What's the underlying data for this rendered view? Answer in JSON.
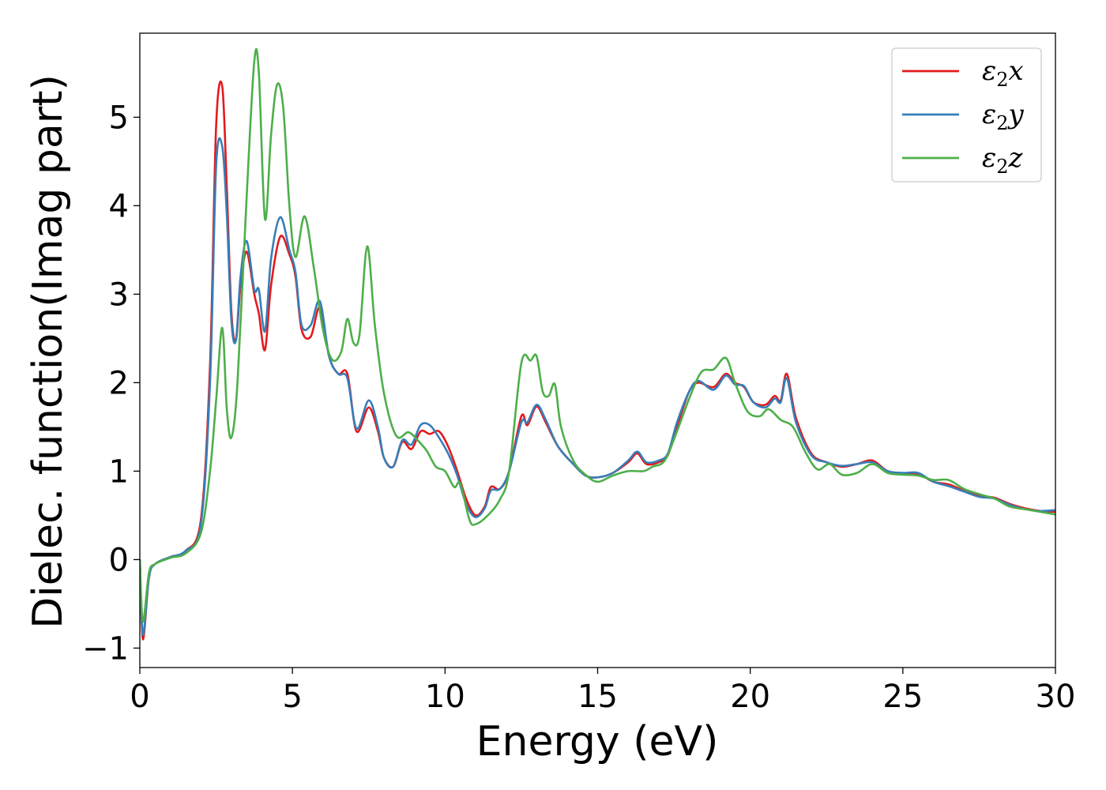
{
  "chart_data": {
    "type": "line",
    "title": "",
    "xlabel": "Energy (eV)",
    "ylabel": "Dielec. function(Imag part)",
    "xlim": [
      0,
      30
    ],
    "ylim": [
      -1.22,
      5.95
    ],
    "xticks": [
      0,
      5,
      10,
      15,
      20,
      25,
      30
    ],
    "yticks": [
      -1,
      0,
      1,
      2,
      3,
      4,
      5
    ],
    "xtick_labels": [
      "0",
      "5",
      "10",
      "15",
      "20",
      "25",
      "30"
    ],
    "ytick_labels": [
      "−1",
      "0",
      "1",
      "2",
      "3",
      "4",
      "5"
    ],
    "grid": false,
    "legend_position": "top-right",
    "series": [
      {
        "name": "ε₂x",
        "legend_main": "ε",
        "legend_sub": "2",
        "legend_suffix": "x",
        "color": "#e41a1c",
        "points": [
          [
            0,
            0
          ],
          [
            0.1,
            -0.9
          ],
          [
            0.3,
            -0.2
          ],
          [
            0.5,
            -0.05
          ],
          [
            1.0,
            0.03
          ],
          [
            1.5,
            0.1
          ],
          [
            2.0,
            0.45
          ],
          [
            2.3,
            2.2
          ],
          [
            2.5,
            4.9
          ],
          [
            2.7,
            5.35
          ],
          [
            2.85,
            4.2
          ],
          [
            3.0,
            2.8
          ],
          [
            3.15,
            2.48
          ],
          [
            3.3,
            3.1
          ],
          [
            3.5,
            3.48
          ],
          [
            3.75,
            3.0
          ],
          [
            3.9,
            2.78
          ],
          [
            4.1,
            2.37
          ],
          [
            4.3,
            3.1
          ],
          [
            4.6,
            3.65
          ],
          [
            4.9,
            3.45
          ],
          [
            5.1,
            3.2
          ],
          [
            5.3,
            2.6
          ],
          [
            5.6,
            2.52
          ],
          [
            5.9,
            2.85
          ],
          [
            6.2,
            2.3
          ],
          [
            6.5,
            2.1
          ],
          [
            6.8,
            2.1
          ],
          [
            7.1,
            1.45
          ],
          [
            7.5,
            1.72
          ],
          [
            7.8,
            1.45
          ],
          [
            8.0,
            1.15
          ],
          [
            8.3,
            1.05
          ],
          [
            8.6,
            1.33
          ],
          [
            8.9,
            1.25
          ],
          [
            9.2,
            1.45
          ],
          [
            9.5,
            1.42
          ],
          [
            9.8,
            1.45
          ],
          [
            10.1,
            1.28
          ],
          [
            10.4,
            1.0
          ],
          [
            10.7,
            0.68
          ],
          [
            11.0,
            0.5
          ],
          [
            11.3,
            0.6
          ],
          [
            11.5,
            0.82
          ],
          [
            11.8,
            0.8
          ],
          [
            12.1,
            1.0
          ],
          [
            12.5,
            1.62
          ],
          [
            12.7,
            1.52
          ],
          [
            13.0,
            1.73
          ],
          [
            13.3,
            1.55
          ],
          [
            13.7,
            1.28
          ],
          [
            14.2,
            1.08
          ],
          [
            14.6,
            0.95
          ],
          [
            15.0,
            0.93
          ],
          [
            15.5,
            0.98
          ],
          [
            16.0,
            1.1
          ],
          [
            16.3,
            1.2
          ],
          [
            16.6,
            1.08
          ],
          [
            17.0,
            1.1
          ],
          [
            17.3,
            1.18
          ],
          [
            17.6,
            1.5
          ],
          [
            18.0,
            1.9
          ],
          [
            18.3,
            2.0
          ],
          [
            18.8,
            1.95
          ],
          [
            19.2,
            2.1
          ],
          [
            19.5,
            2.0
          ],
          [
            19.8,
            1.95
          ],
          [
            20.1,
            1.78
          ],
          [
            20.5,
            1.75
          ],
          [
            20.8,
            1.85
          ],
          [
            21.0,
            1.8
          ],
          [
            21.2,
            2.1
          ],
          [
            21.5,
            1.6
          ],
          [
            22.0,
            1.2
          ],
          [
            22.5,
            1.1
          ],
          [
            23.0,
            1.05
          ],
          [
            23.5,
            1.08
          ],
          [
            24.0,
            1.12
          ],
          [
            24.5,
            1.0
          ],
          [
            25.0,
            0.97
          ],
          [
            25.5,
            0.97
          ],
          [
            26.0,
            0.88
          ],
          [
            26.5,
            0.85
          ],
          [
            27.0,
            0.78
          ],
          [
            27.5,
            0.72
          ],
          [
            28.0,
            0.7
          ],
          [
            28.5,
            0.63
          ],
          [
            29.0,
            0.58
          ],
          [
            29.5,
            0.55
          ],
          [
            30.0,
            0.54
          ]
        ]
      },
      {
        "name": "ε₂y",
        "legend_main": "ε",
        "legend_sub": "2",
        "legend_suffix": "y",
        "color": "#377eb8",
        "points": [
          [
            0,
            0
          ],
          [
            0.1,
            -0.85
          ],
          [
            0.3,
            -0.2
          ],
          [
            0.5,
            -0.05
          ],
          [
            1.0,
            0.03
          ],
          [
            1.5,
            0.1
          ],
          [
            2.0,
            0.4
          ],
          [
            2.3,
            2.0
          ],
          [
            2.5,
            4.45
          ],
          [
            2.7,
            4.67
          ],
          [
            2.85,
            3.9
          ],
          [
            3.0,
            2.7
          ],
          [
            3.15,
            2.48
          ],
          [
            3.3,
            3.2
          ],
          [
            3.5,
            3.6
          ],
          [
            3.75,
            3.05
          ],
          [
            3.9,
            3.05
          ],
          [
            4.1,
            2.58
          ],
          [
            4.3,
            3.4
          ],
          [
            4.6,
            3.87
          ],
          [
            4.9,
            3.5
          ],
          [
            5.1,
            3.25
          ],
          [
            5.3,
            2.65
          ],
          [
            5.6,
            2.65
          ],
          [
            5.9,
            2.92
          ],
          [
            6.2,
            2.3
          ],
          [
            6.5,
            2.1
          ],
          [
            6.8,
            2.05
          ],
          [
            7.1,
            1.48
          ],
          [
            7.5,
            1.8
          ],
          [
            7.8,
            1.5
          ],
          [
            8.0,
            1.15
          ],
          [
            8.3,
            1.05
          ],
          [
            8.6,
            1.35
          ],
          [
            8.9,
            1.3
          ],
          [
            9.2,
            1.52
          ],
          [
            9.5,
            1.52
          ],
          [
            9.8,
            1.38
          ],
          [
            10.1,
            1.2
          ],
          [
            10.4,
            0.95
          ],
          [
            10.7,
            0.62
          ],
          [
            11.0,
            0.48
          ],
          [
            11.3,
            0.58
          ],
          [
            11.5,
            0.78
          ],
          [
            11.8,
            0.8
          ],
          [
            12.1,
            1.0
          ],
          [
            12.5,
            1.55
          ],
          [
            12.7,
            1.55
          ],
          [
            13.0,
            1.75
          ],
          [
            13.3,
            1.58
          ],
          [
            13.7,
            1.28
          ],
          [
            14.2,
            1.08
          ],
          [
            14.6,
            0.95
          ],
          [
            15.0,
            0.93
          ],
          [
            15.5,
            0.98
          ],
          [
            16.0,
            1.12
          ],
          [
            16.3,
            1.22
          ],
          [
            16.6,
            1.1
          ],
          [
            17.0,
            1.12
          ],
          [
            17.3,
            1.2
          ],
          [
            17.6,
            1.55
          ],
          [
            18.0,
            1.9
          ],
          [
            18.3,
            2.02
          ],
          [
            18.8,
            1.92
          ],
          [
            19.2,
            2.08
          ],
          [
            19.5,
            1.98
          ],
          [
            19.8,
            1.96
          ],
          [
            20.1,
            1.78
          ],
          [
            20.5,
            1.72
          ],
          [
            20.8,
            1.82
          ],
          [
            21.0,
            1.78
          ],
          [
            21.2,
            2.05
          ],
          [
            21.5,
            1.55
          ],
          [
            22.0,
            1.18
          ],
          [
            22.5,
            1.1
          ],
          [
            23.0,
            1.06
          ],
          [
            23.5,
            1.08
          ],
          [
            24.0,
            1.1
          ],
          [
            24.5,
            1.0
          ],
          [
            25.0,
            0.98
          ],
          [
            25.5,
            0.98
          ],
          [
            26.0,
            0.88
          ],
          [
            26.5,
            0.83
          ],
          [
            27.0,
            0.77
          ],
          [
            27.5,
            0.71
          ],
          [
            28.0,
            0.69
          ],
          [
            28.5,
            0.62
          ],
          [
            29.0,
            0.57
          ],
          [
            29.5,
            0.55
          ],
          [
            30.0,
            0.56
          ]
        ]
      },
      {
        "name": "ε₂z",
        "legend_main": "ε",
        "legend_sub": "2",
        "legend_suffix": "z",
        "color": "#4daf4a",
        "points": [
          [
            0,
            0
          ],
          [
            0.1,
            -0.7
          ],
          [
            0.3,
            -0.15
          ],
          [
            0.5,
            -0.05
          ],
          [
            1.0,
            0.02
          ],
          [
            1.5,
            0.07
          ],
          [
            2.0,
            0.3
          ],
          [
            2.3,
            1.0
          ],
          [
            2.5,
            1.8
          ],
          [
            2.7,
            2.62
          ],
          [
            2.85,
            1.7
          ],
          [
            3.0,
            1.38
          ],
          [
            3.2,
            2.0
          ],
          [
            3.5,
            4.1
          ],
          [
            3.75,
            5.63
          ],
          [
            3.9,
            5.5
          ],
          [
            4.1,
            3.85
          ],
          [
            4.3,
            4.8
          ],
          [
            4.5,
            5.37
          ],
          [
            4.7,
            5.1
          ],
          [
            4.9,
            4.0
          ],
          [
            5.1,
            3.42
          ],
          [
            5.4,
            3.88
          ],
          [
            5.7,
            3.3
          ],
          [
            6.0,
            2.6
          ],
          [
            6.3,
            2.26
          ],
          [
            6.6,
            2.35
          ],
          [
            6.8,
            2.72
          ],
          [
            7.0,
            2.45
          ],
          [
            7.2,
            2.55
          ],
          [
            7.45,
            3.54
          ],
          [
            7.7,
            2.65
          ],
          [
            8.0,
            1.88
          ],
          [
            8.4,
            1.4
          ],
          [
            8.8,
            1.44
          ],
          [
            9.1,
            1.35
          ],
          [
            9.4,
            1.23
          ],
          [
            9.7,
            1.05
          ],
          [
            10.0,
            1.0
          ],
          [
            10.3,
            0.82
          ],
          [
            10.5,
            0.86
          ],
          [
            10.8,
            0.45
          ],
          [
            11.0,
            0.4
          ],
          [
            11.4,
            0.5
          ],
          [
            11.8,
            0.68
          ],
          [
            12.1,
            1.0
          ],
          [
            12.5,
            2.22
          ],
          [
            12.8,
            2.25
          ],
          [
            13.0,
            2.3
          ],
          [
            13.2,
            1.9
          ],
          [
            13.4,
            1.85
          ],
          [
            13.6,
            1.98
          ],
          [
            13.8,
            1.5
          ],
          [
            14.2,
            1.12
          ],
          [
            14.6,
            0.96
          ],
          [
            15.0,
            0.88
          ],
          [
            15.5,
            0.95
          ],
          [
            16.0,
            1.0
          ],
          [
            16.5,
            1.0
          ],
          [
            16.8,
            1.05
          ],
          [
            17.2,
            1.12
          ],
          [
            17.6,
            1.45
          ],
          [
            18.0,
            1.82
          ],
          [
            18.4,
            2.12
          ],
          [
            18.8,
            2.15
          ],
          [
            19.2,
            2.28
          ],
          [
            19.5,
            2.0
          ],
          [
            19.9,
            1.68
          ],
          [
            20.3,
            1.62
          ],
          [
            20.6,
            1.7
          ],
          [
            21.0,
            1.58
          ],
          [
            21.4,
            1.5
          ],
          [
            21.8,
            1.22
          ],
          [
            22.2,
            1.02
          ],
          [
            22.6,
            1.08
          ],
          [
            23.0,
            0.96
          ],
          [
            23.5,
            0.98
          ],
          [
            24.0,
            1.08
          ],
          [
            24.5,
            0.98
          ],
          [
            25.0,
            0.96
          ],
          [
            25.5,
            0.95
          ],
          [
            26.0,
            0.9
          ],
          [
            26.5,
            0.9
          ],
          [
            27.0,
            0.8
          ],
          [
            27.5,
            0.74
          ],
          [
            28.0,
            0.69
          ],
          [
            28.5,
            0.6
          ],
          [
            29.0,
            0.57
          ],
          [
            29.5,
            0.54
          ],
          [
            30.0,
            0.51
          ]
        ]
      }
    ]
  }
}
